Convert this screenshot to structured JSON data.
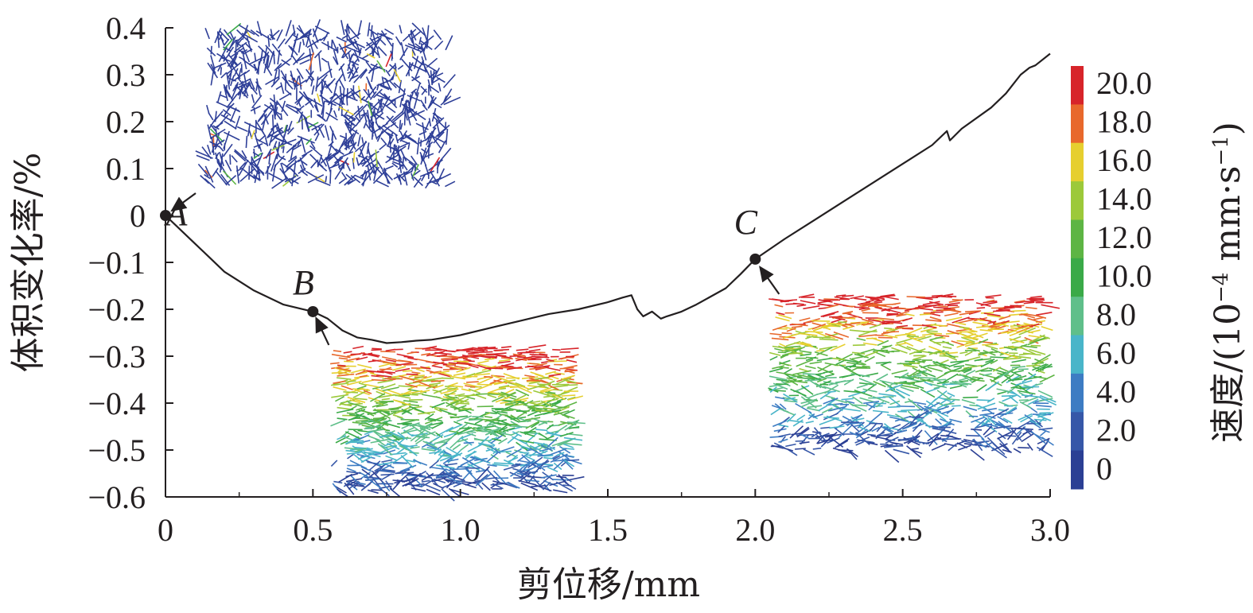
{
  "chart_data": {
    "type": "line",
    "xlabel": "剪位移/mm",
    "ylabel": "体积变化率/%",
    "xlim": [
      0,
      3.0
    ],
    "ylim": [
      -0.6,
      0.4
    ],
    "x_ticks": [
      "0",
      "0.5",
      "1.0",
      "1.5",
      "2.0",
      "2.5",
      "3.0"
    ],
    "y_ticks": [
      "0.4",
      "0.3",
      "0.2",
      "0.1",
      "0",
      "−0.1",
      "−0.2",
      "−0.3",
      "−0.4",
      "−0.5",
      "−0.6"
    ],
    "grid": false,
    "series": [
      {
        "name": "",
        "points": [
          [
            0.0,
            0.0
          ],
          [
            0.05,
            -0.03
          ],
          [
            0.1,
            -0.06
          ],
          [
            0.15,
            -0.09
          ],
          [
            0.2,
            -0.12
          ],
          [
            0.3,
            -0.16
          ],
          [
            0.4,
            -0.19
          ],
          [
            0.5,
            -0.205
          ],
          [
            0.55,
            -0.22
          ],
          [
            0.6,
            -0.245
          ],
          [
            0.65,
            -0.26
          ],
          [
            0.7,
            -0.265
          ],
          [
            0.75,
            -0.272
          ],
          [
            0.8,
            -0.27
          ],
          [
            0.85,
            -0.267
          ],
          [
            0.9,
            -0.265
          ],
          [
            1.0,
            -0.255
          ],
          [
            1.1,
            -0.24
          ],
          [
            1.2,
            -0.225
          ],
          [
            1.3,
            -0.21
          ],
          [
            1.4,
            -0.2
          ],
          [
            1.5,
            -0.185
          ],
          [
            1.55,
            -0.175
          ],
          [
            1.58,
            -0.17
          ],
          [
            1.6,
            -0.2
          ],
          [
            1.62,
            -0.215
          ],
          [
            1.65,
            -0.205
          ],
          [
            1.68,
            -0.22
          ],
          [
            1.7,
            -0.215
          ],
          [
            1.75,
            -0.205
          ],
          [
            1.8,
            -0.19
          ],
          [
            1.9,
            -0.155
          ],
          [
            1.95,
            -0.125
          ],
          [
            2.0,
            -0.093
          ],
          [
            2.1,
            -0.05
          ],
          [
            2.2,
            -0.01
          ],
          [
            2.3,
            0.03
          ],
          [
            2.4,
            0.07
          ],
          [
            2.5,
            0.11
          ],
          [
            2.6,
            0.15
          ],
          [
            2.65,
            0.18
          ],
          [
            2.66,
            0.16
          ],
          [
            2.7,
            0.185
          ],
          [
            2.8,
            0.23
          ],
          [
            2.85,
            0.26
          ],
          [
            2.9,
            0.3
          ],
          [
            2.93,
            0.315
          ],
          [
            2.95,
            0.32
          ],
          [
            3.0,
            0.345
          ]
        ]
      }
    ],
    "annotations": [
      {
        "label": "A",
        "x": 0.0,
        "y": 0.0
      },
      {
        "label": "B",
        "x": 0.5,
        "y": -0.205
      },
      {
        "label": "C",
        "x": 2.0,
        "y": -0.093
      }
    ],
    "colorbar": {
      "title": "速度/(10",
      "title_sup": "−4",
      "title_tail": " mm·s",
      "title_sup2": "−1",
      "title_end": ")",
      "labels": [
        "20.0",
        "18.0",
        "16.0",
        "14.0",
        "12.0",
        "10.0",
        "8.0",
        "6.0",
        "4.0",
        "2.0",
        "0"
      ],
      "colors": [
        "#d7242a",
        "#e8682c",
        "#e6cf2f",
        "#9cc93a",
        "#5db544",
        "#3aaa48",
        "#5fbf8a",
        "#49b5c9",
        "#3d7cc3",
        "#3657a8",
        "#2b3f94"
      ]
    },
    "insets": [
      {
        "label": "A",
        "pattern": "uniform-blue"
      },
      {
        "label": "B",
        "pattern": "top-red-bottom-blue"
      },
      {
        "label": "C",
        "pattern": "top-red-bottom-blue"
      }
    ]
  }
}
